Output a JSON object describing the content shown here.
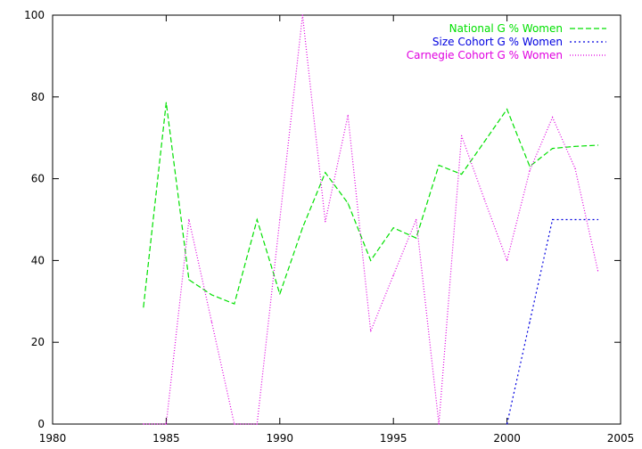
{
  "chart_data": {
    "type": "line",
    "title": "",
    "xlabel": "",
    "ylabel": "",
    "xlim": [
      1980,
      2005
    ],
    "ylim": [
      0,
      100
    ],
    "xticks": [
      1980,
      1985,
      1990,
      1995,
      2000,
      2005
    ],
    "yticks": [
      0,
      20,
      40,
      60,
      80,
      100
    ],
    "grid": false,
    "legend_position": "top-right",
    "series": [
      {
        "name": "National G % Women",
        "color": "#00e000",
        "dash": "dashed",
        "points": [
          [
            1984,
            28.6
          ],
          [
            1985,
            78.6
          ],
          [
            1986,
            35.3
          ],
          [
            1987,
            31.6
          ],
          [
            1988,
            29.4
          ],
          [
            1989,
            50.0
          ],
          [
            1990,
            31.8
          ],
          [
            1991,
            48.0
          ],
          [
            1992,
            61.5
          ],
          [
            1993,
            54.0
          ],
          [
            1994,
            40.0
          ],
          [
            1995,
            48.0
          ],
          [
            1996,
            45.5
          ],
          [
            1997,
            63.3
          ],
          [
            1998,
            61.1
          ],
          [
            1999,
            69.0
          ],
          [
            2000,
            77.0
          ],
          [
            2001,
            63.0
          ],
          [
            2002,
            67.4
          ],
          [
            2003,
            67.9
          ],
          [
            2004,
            68.2
          ]
        ]
      },
      {
        "name": "Size Cohort G % Women",
        "color": "#0000e0",
        "dash": "dotted",
        "points": [
          [
            2000,
            0
          ],
          [
            2001,
            25.0
          ],
          [
            2002,
            50.0
          ],
          [
            2003,
            50.0
          ],
          [
            2004,
            50.0
          ]
        ]
      },
      {
        "name": "Carnegie Cohort G % Women",
        "color": "#e000e0",
        "dash": "dense-dotted",
        "points": [
          [
            1984,
            0
          ],
          [
            1985,
            0
          ],
          [
            1986,
            50.0
          ],
          [
            1987,
            25.0
          ],
          [
            1988,
            0
          ],
          [
            1989,
            0
          ],
          [
            1990,
            50.0
          ],
          [
            1991,
            100.0
          ],
          [
            1992,
            49.5
          ],
          [
            1993,
            75.5
          ],
          [
            1994,
            22.7
          ],
          [
            1995,
            36.4
          ],
          [
            1996,
            50.0
          ],
          [
            1997,
            0
          ],
          [
            1998,
            70.5
          ],
          [
            1999,
            55.0
          ],
          [
            2000,
            40.0
          ],
          [
            2001,
            62.0
          ],
          [
            2002,
            75.0
          ],
          [
            2003,
            62.5
          ],
          [
            2004,
            37.5
          ]
        ]
      }
    ]
  }
}
